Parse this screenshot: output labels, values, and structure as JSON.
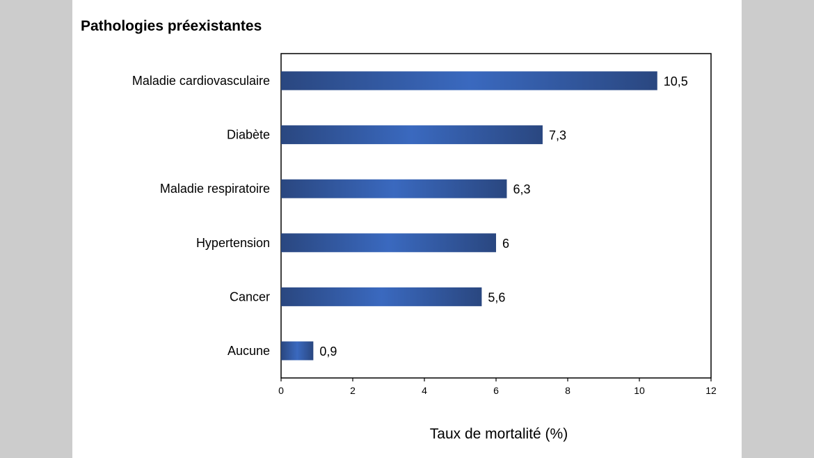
{
  "chart_data": {
    "type": "bar",
    "orientation": "horizontal",
    "title": "Pathologies préexistantes",
    "xlabel": "Taux de mortalité (%)",
    "ylabel": "",
    "categories": [
      "Maladie cardiovasculaire",
      "Diabète",
      "Maladie respiratoire",
      "Hypertension",
      "Cancer",
      "Aucune"
    ],
    "values": [
      10.5,
      7.3,
      6.3,
      6,
      5.6,
      0.9
    ],
    "value_labels": [
      "10,5",
      "7,3",
      "6,3",
      "6",
      "5,6",
      "0,9"
    ],
    "xlim": [
      0,
      12
    ],
    "x_ticks": [
      0,
      2,
      4,
      6,
      8,
      10,
      12
    ],
    "x_tick_labels": [
      "0",
      "2",
      "4",
      "6",
      "8",
      "10",
      "12"
    ],
    "grid": false,
    "legend": "none",
    "colors": {
      "bar_edge": "#2a4780",
      "bar_center": "#3a69bf",
      "axis": "#000000",
      "page_background": "#cccccc",
      "slide_background": "#ffffff"
    }
  }
}
